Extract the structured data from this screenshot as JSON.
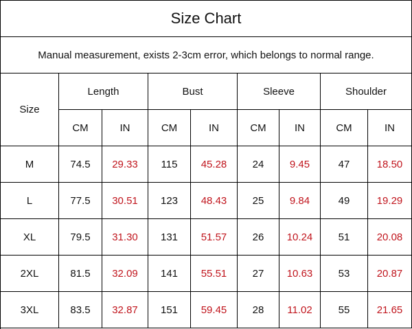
{
  "title": "Size Chart",
  "note": "Manual measurement, exists 2-3cm error, which belongs to normal range.",
  "table": {
    "size_header": "Size",
    "groups": [
      "Length",
      "Bust",
      "Sleeve",
      "Shoulder"
    ],
    "units": [
      "CM",
      "IN",
      "CM",
      "IN",
      "CM",
      "IN",
      "CM",
      "IN"
    ],
    "rows": [
      [
        "M",
        "74.5",
        "29.33",
        "115",
        "45.28",
        "24",
        "9.45",
        "47",
        "18.50"
      ],
      [
        "L",
        "77.5",
        "30.51",
        "123",
        "48.43",
        "25",
        "9.84",
        "49",
        "19.29"
      ],
      [
        "XL",
        "79.5",
        "31.30",
        "131",
        "51.57",
        "26",
        "10.24",
        "51",
        "20.08"
      ],
      [
        "2XL",
        "81.5",
        "32.09",
        "141",
        "55.51",
        "27",
        "10.63",
        "53",
        "20.87"
      ],
      [
        "3XL",
        "83.5",
        "32.87",
        "151",
        "59.45",
        "28",
        "11.02",
        "55",
        "21.65"
      ]
    ]
  }
}
